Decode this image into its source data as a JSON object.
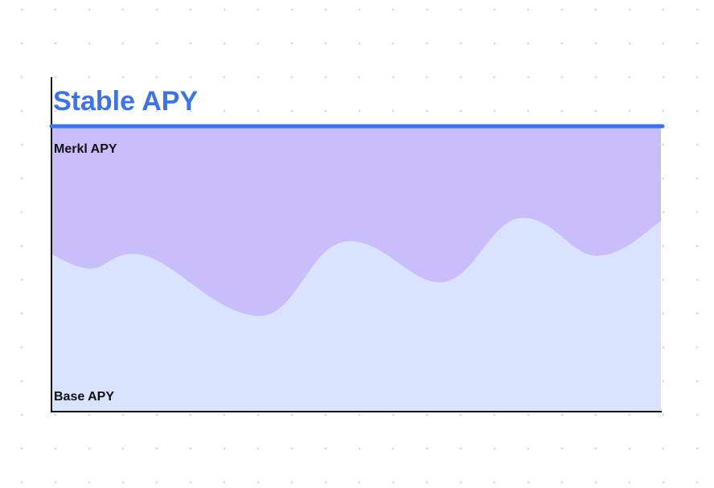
{
  "title": "Stable APY",
  "areas": {
    "top": "Merkl APY",
    "bottom": "Base APY"
  }
}
